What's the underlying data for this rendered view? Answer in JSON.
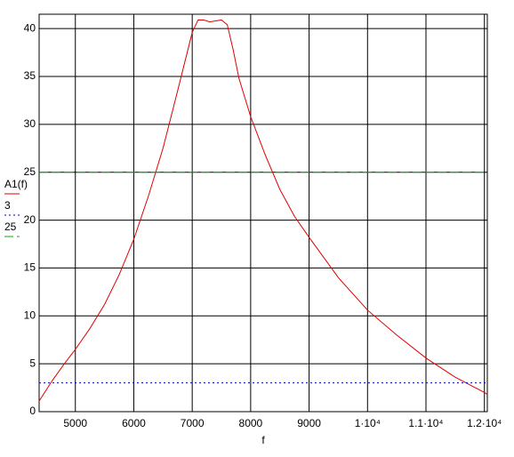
{
  "chart_data": {
    "type": "line",
    "x_label": "f",
    "xlim": [
      4380,
      12050
    ],
    "ylim": [
      0,
      41.5
    ],
    "xticks": [
      5000,
      6000,
      7000,
      8000,
      9000,
      {
        "value": 10000,
        "label": "1·10⁴"
      },
      {
        "value": 11000,
        "label": "1.1·10⁴"
      },
      {
        "value": 12000,
        "label": "1.2·10⁴"
      }
    ],
    "yticks": [
      0,
      5,
      10,
      15,
      20,
      25,
      30,
      35,
      40
    ],
    "grid": true,
    "series": [
      {
        "name": "A1(f)",
        "color": "#e00000",
        "style": "solid",
        "x": [
          4380,
          4600,
          4800,
          5000,
          5250,
          5500,
          5750,
          6000,
          6250,
          6500,
          6750,
          7000,
          7100,
          7200,
          7300,
          7400,
          7500,
          7600,
          7700,
          7800,
          8000,
          8250,
          8500,
          8750,
          9000,
          9500,
          10000,
          10500,
          11000,
          11500,
          12000,
          12050
        ],
        "values": [
          1.1,
          3.2,
          4.9,
          6.5,
          8.7,
          11.2,
          14.3,
          18.0,
          22.5,
          27.5,
          33.5,
          39.6,
          40.9,
          40.9,
          40.7,
          40.8,
          40.9,
          40.4,
          37.8,
          34.8,
          30.8,
          26.8,
          23.2,
          20.4,
          18.2,
          14.0,
          10.6,
          8.0,
          5.6,
          3.6,
          2.0,
          1.8
        ]
      },
      {
        "name": "3",
        "color": "#0000cc",
        "style": "dotted",
        "x": [
          4380,
          12050
        ],
        "values": [
          3,
          3
        ]
      },
      {
        "name": "25",
        "color": "#00b000",
        "style": "dashed",
        "x": [
          4380,
          12050
        ],
        "values": [
          25,
          25
        ]
      }
    ]
  }
}
